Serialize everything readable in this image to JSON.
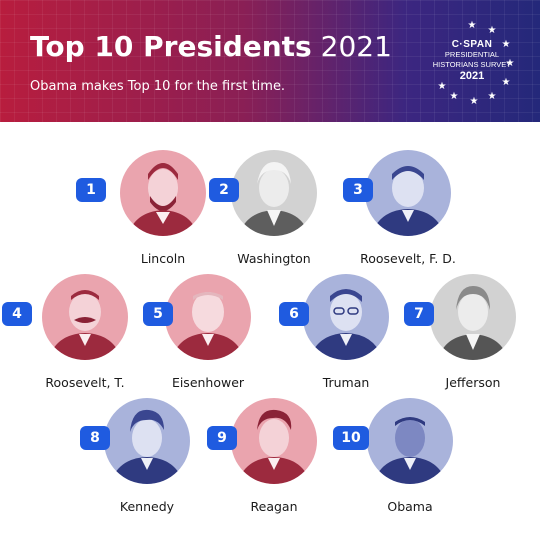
{
  "header": {
    "title_bold": "Top 10 Presidents",
    "title_year": "2021",
    "subtitle": "Obama makes Top 10 for the first time.",
    "badge": {
      "brand": "C·SPAN",
      "line1": "PRESIDENTIAL",
      "line2": "HISTORIANS SURVEY",
      "year": "2021"
    }
  },
  "colors": {
    "header_start": "#b81d3e",
    "header_end": "#24287a",
    "rank_badge": "#1f5be0",
    "red_tint": "#e8a0aa",
    "gray_tint": "#d4d4d4",
    "blue_tint": "#a9b4dc"
  },
  "presidents": [
    {
      "rank": "1",
      "name": "Lincoln",
      "tint": "red"
    },
    {
      "rank": "2",
      "name": "Washington",
      "tint": "gray"
    },
    {
      "rank": "3",
      "name": "Roosevelt, F. D.",
      "tint": "blue"
    },
    {
      "rank": "4",
      "name": "Roosevelt, T.",
      "tint": "red"
    },
    {
      "rank": "5",
      "name": "Eisenhower",
      "tint": "red"
    },
    {
      "rank": "6",
      "name": "Truman",
      "tint": "blue"
    },
    {
      "rank": "7",
      "name": "Jefferson",
      "tint": "gray"
    },
    {
      "rank": "8",
      "name": "Kennedy",
      "tint": "blue"
    },
    {
      "rank": "9",
      "name": "Reagan",
      "tint": "red"
    },
    {
      "rank": "10",
      "name": "Obama",
      "tint": "blue"
    }
  ]
}
